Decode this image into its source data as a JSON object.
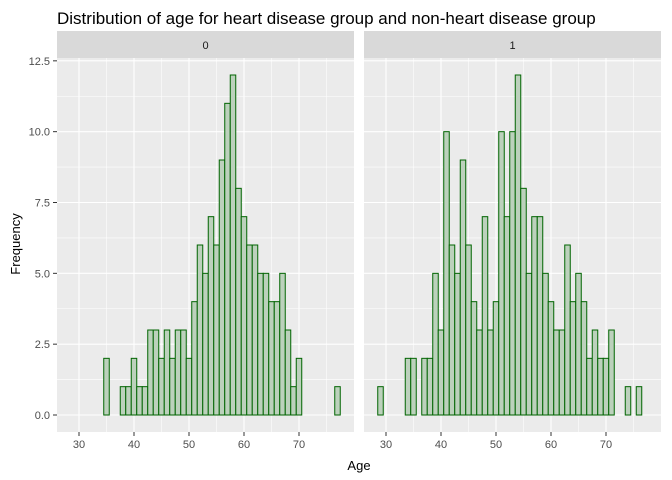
{
  "chart_data": {
    "type": "bar",
    "title": "Distribution of age for heart disease group and non-heart disease group",
    "xlabel": "Age",
    "ylabel": "Frequency",
    "xlim": [
      26,
      80
    ],
    "ylim": [
      -0.6,
      12.6
    ],
    "x_ticks": [
      30,
      40,
      50,
      60,
      70
    ],
    "y_ticks": [
      0.0,
      2.5,
      5.0,
      7.5,
      10.0,
      12.5
    ],
    "y_tick_labels": [
      "0.0",
      "2.5",
      "5.0",
      "7.5",
      "10.0",
      "12.5"
    ],
    "binwidth": 1,
    "grid": true,
    "fill_color": "#bcd1bc",
    "outline_color": "#006400",
    "panel_background": "#ebebeb",
    "strip_background": "#d9d9d9",
    "facets": [
      {
        "label": "0",
        "bins": [
          [
            35,
            2
          ],
          [
            38,
            1
          ],
          [
            39,
            1
          ],
          [
            40,
            2
          ],
          [
            41,
            1
          ],
          [
            42,
            1
          ],
          [
            43,
            3
          ],
          [
            44,
            3
          ],
          [
            45,
            2
          ],
          [
            46,
            3
          ],
          [
            47,
            2
          ],
          [
            48,
            3
          ],
          [
            49,
            3
          ],
          [
            50,
            2
          ],
          [
            51,
            4
          ],
          [
            52,
            6
          ],
          [
            53,
            5
          ],
          [
            54,
            7
          ],
          [
            55,
            6
          ],
          [
            56,
            9
          ],
          [
            57,
            11
          ],
          [
            58,
            12
          ],
          [
            59,
            8
          ],
          [
            60,
            7
          ],
          [
            61,
            6
          ],
          [
            62,
            6
          ],
          [
            63,
            5
          ],
          [
            64,
            5
          ],
          [
            65,
            4
          ],
          [
            66,
            4
          ],
          [
            67,
            5
          ],
          [
            68,
            3
          ],
          [
            69,
            1
          ],
          [
            70,
            2
          ],
          [
            77,
            1
          ]
        ]
      },
      {
        "label": "1",
        "bins": [
          [
            29,
            1
          ],
          [
            34,
            2
          ],
          [
            35,
            2
          ],
          [
            37,
            2
          ],
          [
            38,
            2
          ],
          [
            39,
            5
          ],
          [
            40,
            3
          ],
          [
            41,
            10
          ],
          [
            42,
            6
          ],
          [
            43,
            5
          ],
          [
            44,
            9
          ],
          [
            45,
            6
          ],
          [
            46,
            4
          ],
          [
            47,
            3
          ],
          [
            48,
            7
          ],
          [
            49,
            3
          ],
          [
            50,
            4
          ],
          [
            51,
            10
          ],
          [
            52,
            7
          ],
          [
            53,
            10
          ],
          [
            54,
            12
          ],
          [
            55,
            8
          ],
          [
            56,
            5
          ],
          [
            57,
            7
          ],
          [
            58,
            7
          ],
          [
            59,
            5
          ],
          [
            60,
            4
          ],
          [
            61,
            3
          ],
          [
            62,
            3
          ],
          [
            63,
            6
          ],
          [
            64,
            4
          ],
          [
            65,
            5
          ],
          [
            66,
            4
          ],
          [
            67,
            2
          ],
          [
            68,
            3
          ],
          [
            69,
            2
          ],
          [
            70,
            2
          ],
          [
            71,
            3
          ],
          [
            74,
            1
          ],
          [
            76,
            1
          ]
        ]
      }
    ]
  }
}
